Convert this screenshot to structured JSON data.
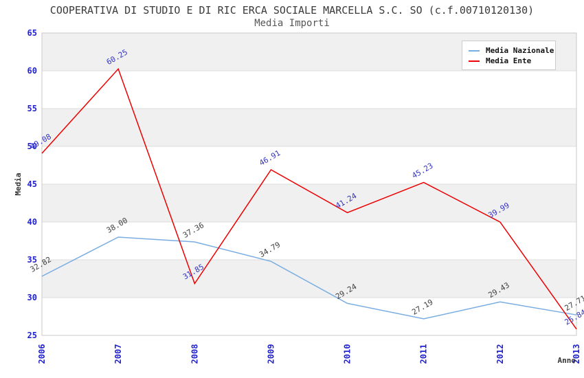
{
  "header": {
    "title": "COOPERATIVA DI STUDIO E DI RIC ERCA SOCIALE MARCELLA S.C. SO (c.f.00710120130)",
    "subtitle": "Media Importi"
  },
  "chart_data": {
    "type": "line",
    "title": "COOPERATIVA DI STUDIO E DI RIC ERCA SOCIALE MARCELLA S.C. SO (c.f.00710120130)",
    "subtitle": "Media Importi",
    "xlabel": "Anno",
    "ylabel": "Media",
    "categories": [
      "2006",
      "2007",
      "2008",
      "2009",
      "2010",
      "2011",
      "2012",
      "2013"
    ],
    "series": [
      {
        "name": "Media Nazionale",
        "color": "#79ade2",
        "label_color": "#404040",
        "values": [
          32.82,
          38.0,
          37.36,
          34.79,
          29.24,
          27.19,
          29.43,
          27.71
        ]
      },
      {
        "name": "Media Ente",
        "color": "#ee0000",
        "label_color": "#3434c2",
        "values": [
          49.08,
          60.25,
          31.85,
          46.91,
          41.24,
          45.23,
          39.99,
          25.84
        ]
      }
    ],
    "ylim": [
      25,
      65
    ],
    "ytick_step": 5,
    "grid": "horizontal",
    "band_fill": "#f0f0f0",
    "gridline_color": "#dcdcdc",
    "plot_border_color": "#c9c9c9",
    "axis_tick_color": "#2222cc",
    "axis_title_color": "#333333",
    "legend_position": "top-right",
    "label_decimals": 2
  }
}
